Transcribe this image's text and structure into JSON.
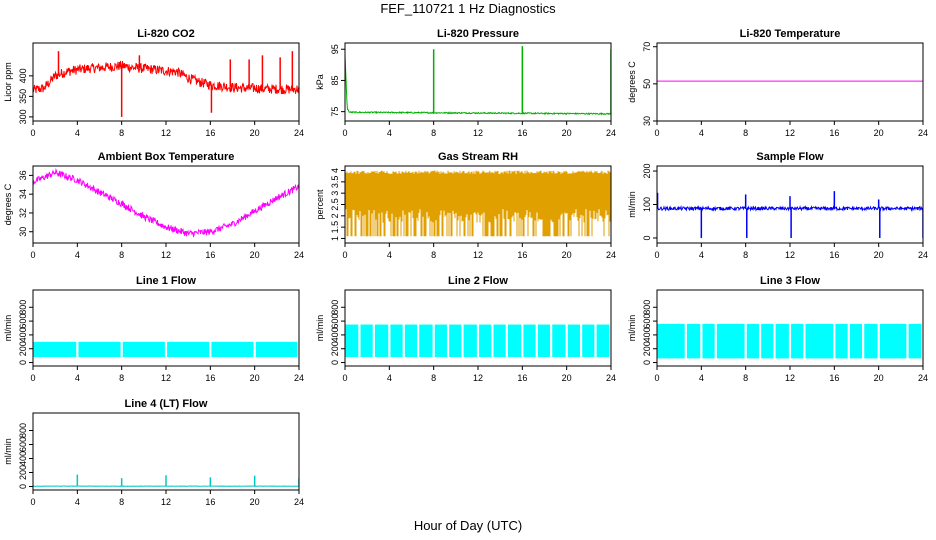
{
  "figure": {
    "title": "FEF_110721  1 Hz Diagnostics",
    "xlabel": "Hour of Day (UTC)"
  },
  "chart_data": [
    {
      "type": "line",
      "title": "Li-820 CO2",
      "ylabel": "Licor ppm",
      "color": "#ff0000",
      "xlim": [
        0,
        24
      ],
      "ylim": [
        290,
        480
      ],
      "xticks": [
        0,
        4,
        8,
        12,
        16,
        20,
        24
      ],
      "yticks": [
        300,
        350,
        400
      ],
      "series": [
        {
          "x": [
            0,
            1,
            2,
            3,
            4,
            5,
            6,
            7,
            8,
            9,
            10,
            11,
            12,
            13,
            14,
            15,
            16,
            17,
            18,
            19,
            20,
            21,
            22,
            23,
            24
          ],
          "y": [
            365,
            370,
            400,
            410,
            415,
            418,
            420,
            422,
            425,
            420,
            418,
            415,
            412,
            410,
            395,
            385,
            378,
            375,
            372,
            370,
            370,
            368,
            368,
            367,
            368
          ]
        }
      ],
      "noise": 12,
      "spikes": [
        {
          "x": 2.3,
          "y": 460
        },
        {
          "x": 8.0,
          "y": 300
        },
        {
          "x": 9.6,
          "y": 450
        },
        {
          "x": 16.1,
          "y": 310
        },
        {
          "x": 17.8,
          "y": 440
        },
        {
          "x": 19.5,
          "y": 440
        },
        {
          "x": 20.7,
          "y": 450
        },
        {
          "x": 22.3,
          "y": 445
        },
        {
          "x": 23.4,
          "y": 460
        }
      ]
    },
    {
      "type": "line",
      "title": "Li-820 Pressure",
      "ylabel": "kPa",
      "color": "#00b000",
      "xlim": [
        0,
        24
      ],
      "ylim": [
        72,
        97
      ],
      "xticks": [
        0,
        4,
        8,
        12,
        16,
        20,
        24
      ],
      "yticks": [
        75,
        85,
        95
      ],
      "series": [
        {
          "x": [
            0,
            0.2,
            0.4,
            24
          ],
          "y": [
            93,
            76,
            74.8,
            74.3
          ]
        }
      ],
      "noise": 0.2,
      "spikes": [
        {
          "x": 8.0,
          "y": 95
        },
        {
          "x": 16.0,
          "y": 96
        },
        {
          "x": 24.0,
          "y": 95
        }
      ]
    },
    {
      "type": "line",
      "title": "Li-820 Temperature",
      "ylabel": "degrees C",
      "color": "#ff00ff",
      "xlim": [
        0,
        24
      ],
      "ylim": [
        30,
        72
      ],
      "xticks": [
        0,
        4,
        8,
        12,
        16,
        20,
        24
      ],
      "yticks": [
        30,
        50,
        70
      ],
      "series": [
        {
          "x": [
            0,
            24
          ],
          "y": [
            51.5,
            51.5
          ]
        }
      ],
      "noise": 0,
      "spikes": []
    },
    {
      "type": "line",
      "title": "Ambient Box Temperature",
      "ylabel": "degrees C",
      "color": "#ff00ff",
      "xlim": [
        0,
        24
      ],
      "ylim": [
        28.8,
        37
      ],
      "xticks": [
        0,
        4,
        8,
        12,
        16,
        20,
        24
      ],
      "yticks": [
        30,
        32,
        34,
        36
      ],
      "series": [
        {
          "x": [
            0,
            2,
            4,
            6,
            8,
            10,
            12,
            14,
            16,
            18,
            20,
            22,
            24
          ],
          "y": [
            35.3,
            36.3,
            35.5,
            34.2,
            33.0,
            31.6,
            30.5,
            29.8,
            30.0,
            30.8,
            32.2,
            33.6,
            34.8
          ]
        }
      ],
      "noise": 0.35,
      "spikes": []
    },
    {
      "type": "line",
      "title": "Gas Stream RH",
      "ylabel": "percent",
      "color": "#e0a000",
      "xlim": [
        0,
        24
      ],
      "ylim": [
        0.8,
        4.2
      ],
      "xticks": [
        0,
        4,
        8,
        12,
        16,
        20,
        24
      ],
      "yticks": [
        1.0,
        1.5,
        2.0,
        2.5,
        3.0,
        3.5,
        4.0
      ],
      "series": [
        {
          "x": [
            0,
            24
          ],
          "y": [
            1.1,
            4.0
          ]
        }
      ],
      "noise": 0,
      "spikes": [],
      "band": true
    },
    {
      "type": "line",
      "title": "Sample Flow",
      "ylabel": "ml/min",
      "color": "#0000ff",
      "xlim": [
        0,
        24
      ],
      "ylim": [
        -15,
        215
      ],
      "xticks": [
        0,
        4,
        8,
        12,
        16,
        20,
        24
      ],
      "yticks": [
        0,
        100,
        200
      ],
      "series": [
        {
          "x": [
            0,
            24
          ],
          "y": [
            88,
            88
          ]
        }
      ],
      "noise": 5,
      "spikes": [
        {
          "x": 0.05,
          "y": 135
        },
        {
          "x": 4.0,
          "y": 0
        },
        {
          "x": 8.0,
          "y": 130
        },
        {
          "x": 8.1,
          "y": 0
        },
        {
          "x": 12.0,
          "y": 125
        },
        {
          "x": 12.1,
          "y": 0
        },
        {
          "x": 16.0,
          "y": 140
        },
        {
          "x": 20.0,
          "y": 115
        },
        {
          "x": 20.1,
          "y": 0
        },
        {
          "x": 24.0,
          "y": 0
        }
      ]
    },
    {
      "type": "area",
      "title": "Line 1 Flow",
      "ylabel": "ml/min",
      "color": "#00ffff",
      "xlim": [
        0,
        24
      ],
      "ylim": [
        -50,
        1050
      ],
      "xticks": [
        0,
        4,
        8,
        12,
        16,
        20,
        24
      ],
      "yticks": [
        0,
        200,
        400,
        600,
        800
      ],
      "series": [
        {
          "x": [
            0,
            24
          ],
          "y": [
            80,
            300
          ]
        }
      ],
      "gaps": [
        4,
        8,
        12,
        16,
        20
      ],
      "spikes": []
    },
    {
      "type": "area",
      "title": "Line 2 Flow",
      "ylabel": "ml/min",
      "color": "#00ffff",
      "xlim": [
        0,
        24
      ],
      "ylim": [
        -50,
        1050
      ],
      "xticks": [
        0,
        4,
        8,
        12,
        16,
        20,
        24
      ],
      "yticks": [
        0,
        200,
        400,
        600,
        800
      ],
      "series": [
        {
          "x": [
            0,
            24
          ],
          "y": [
            80,
            550
          ]
        }
      ],
      "gaps": [
        1.3,
        2.6,
        4,
        5.3,
        6.6,
        8,
        9.3,
        10.6,
        12,
        13.3,
        14.6,
        16,
        17.3,
        18.6,
        20,
        21.3,
        22.6
      ],
      "spikes": []
    },
    {
      "type": "area",
      "title": "Line 3 Flow",
      "ylabel": "ml/min",
      "color": "#00ffff",
      "xlim": [
        0,
        24
      ],
      "ylim": [
        -50,
        1050
      ],
      "xticks": [
        0,
        4,
        8,
        12,
        16,
        20,
        24
      ],
      "yticks": [
        0,
        200,
        400,
        600,
        800
      ],
      "series": [
        {
          "x": [
            0,
            24
          ],
          "y": [
            60,
            560
          ]
        }
      ],
      "gaps": [
        2.6,
        4,
        5.3,
        8,
        9.3,
        10.6,
        12,
        13.3,
        16,
        17.3,
        18.6,
        20,
        22.6
      ],
      "spikes": []
    },
    {
      "type": "line",
      "title": "Line 4 (LT) Flow",
      "ylabel": "ml/min",
      "color": "#00c8c8",
      "xlim": [
        0,
        24
      ],
      "ylim": [
        -50,
        1050
      ],
      "xticks": [
        0,
        4,
        8,
        12,
        16,
        20,
        24
      ],
      "yticks": [
        0,
        200,
        400,
        600,
        800
      ],
      "series": [
        {
          "x": [
            0,
            24
          ],
          "y": [
            5,
            5
          ]
        }
      ],
      "noise": 3,
      "spikes": [
        {
          "x": 4.0,
          "y": 170
        },
        {
          "x": 8.0,
          "y": 120
        },
        {
          "x": 12.0,
          "y": 160
        },
        {
          "x": 16.0,
          "y": 130
        },
        {
          "x": 20.0,
          "y": 155
        },
        {
          "x": 24.0,
          "y": 120
        }
      ]
    }
  ]
}
